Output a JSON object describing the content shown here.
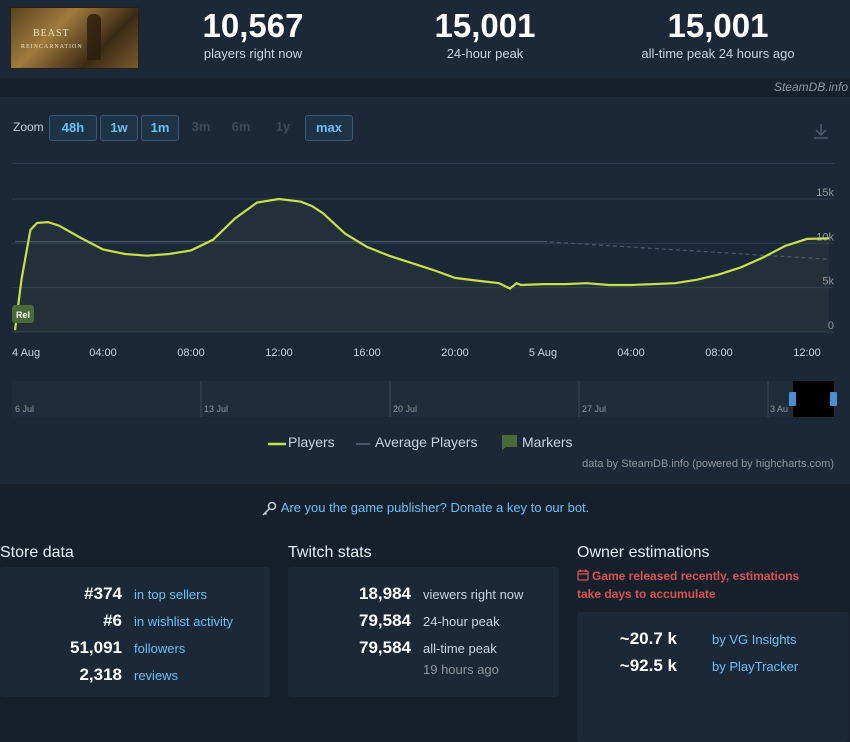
{
  "header": {
    "game_title": "BEAST",
    "game_subtitle": "REINCARNATION",
    "stats": [
      {
        "value": "10,567",
        "label": "players right now"
      },
      {
        "value": "15,001",
        "label": "24-hour peak"
      },
      {
        "value": "15,001",
        "label": "all-time peak 24 hours ago"
      }
    ],
    "brand": "SteamDB.info"
  },
  "zoom": {
    "label": "Zoom",
    "buttons": [
      {
        "label": "48h",
        "active": true
      },
      {
        "label": "1w",
        "active": true
      },
      {
        "label": "1m",
        "active": true
      },
      {
        "label": "3m",
        "active": false
      },
      {
        "label": "6m",
        "active": false
      },
      {
        "label": "1y",
        "active": false
      },
      {
        "label": "max",
        "active": true
      }
    ]
  },
  "chart_data": {
    "type": "line",
    "x_tick_labels": [
      "4 Aug",
      "04:00",
      "08:00",
      "12:00",
      "16:00",
      "20:00",
      "5 Aug",
      "04:00",
      "08:00",
      "12:00"
    ],
    "y_tick_labels": [
      "0",
      "5k",
      "10k",
      "15k"
    ],
    "ylim": [
      0,
      15000
    ],
    "grid": true,
    "legend_placement": "bottom",
    "series": [
      {
        "name": "Players",
        "color": "#c8e04a",
        "x_hours": [
          0,
          0.3,
          0.7,
          1,
          1.5,
          2,
          3,
          4,
          5,
          6,
          7,
          8,
          9,
          10,
          11,
          12,
          13,
          13.5,
          14,
          15,
          16,
          17,
          18,
          19,
          20,
          21,
          22,
          22.5,
          22.8,
          23,
          24,
          25,
          26,
          27,
          28,
          29,
          30,
          31,
          32,
          33,
          34,
          35,
          36,
          37
        ],
        "values": [
          200,
          6000,
          11500,
          12300,
          12400,
          12000,
          10600,
          9300,
          8800,
          8600,
          8800,
          9200,
          10400,
          12800,
          14600,
          15000,
          14700,
          14200,
          13400,
          11100,
          9600,
          8600,
          7800,
          7000,
          6100,
          5800,
          5500,
          4900,
          5500,
          5300,
          5400,
          5400,
          5500,
          5300,
          5300,
          5400,
          5500,
          5900,
          6500,
          7300,
          8400,
          9700,
          10500,
          10567
        ]
      },
      {
        "name": "Average Players",
        "color": "#4a5a6a",
        "x_hours": [
          0,
          24,
          37
        ],
        "values": [
          10200,
          10200,
          8200
        ]
      }
    ],
    "markers": [
      {
        "label": "Rel",
        "x_hours": 0
      }
    ],
    "legend": [
      "Players",
      "Average Players",
      "Markers"
    ]
  },
  "navigator": {
    "labels": [
      "6 Jul",
      "13 Jul",
      "20 Jul",
      "27 Jul",
      "3 Au"
    ]
  },
  "credit": "data by SteamDB.info (powered by highcharts.com)",
  "publisher_prompt": "Are you the game publisher? Donate a key to our bot.",
  "store": {
    "title": "Store data",
    "rows": [
      {
        "value": "#374",
        "label": "in top sellers"
      },
      {
        "value": "#6",
        "label": "in wishlist activity"
      },
      {
        "value": "51,091",
        "label": "followers"
      },
      {
        "value": "2,318",
        "label": "reviews"
      }
    ]
  },
  "twitch": {
    "title": "Twitch stats",
    "rows": [
      {
        "value": "18,984",
        "label": "viewers right now"
      },
      {
        "value": "79,584",
        "label": "24-hour peak"
      },
      {
        "value": "79,584",
        "label": "all-time peak",
        "sub": "19 hours ago"
      }
    ]
  },
  "owners": {
    "title": "Owner estimations",
    "warning_line1": "Game released recently, estimations",
    "warning_line2": "take days to accumulate",
    "rows": [
      {
        "value": "~20.7 k",
        "label": "by VG Insights"
      },
      {
        "value": "~92.5 k",
        "label": "by PlayTracker"
      }
    ]
  },
  "colors": {
    "accent": "#67c1f5",
    "line": "#c8e04a",
    "warning": "#d9534f"
  }
}
